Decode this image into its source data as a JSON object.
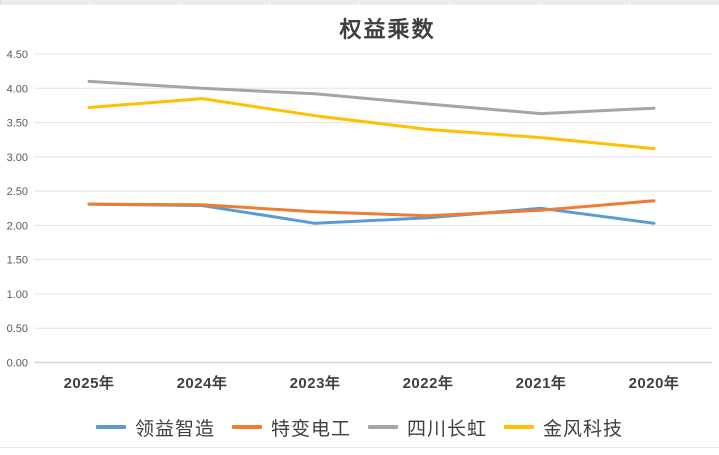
{
  "chart_data": {
    "type": "line",
    "title": "权益乘数",
    "categories": [
      "2025年",
      "2024年",
      "2023年",
      "2022年",
      "2021年",
      "2020年"
    ],
    "series": [
      {
        "name": "领益智造",
        "color": "#5B9BD5",
        "values": [
          2.31,
          2.29,
          2.03,
          2.11,
          2.25,
          2.03
        ]
      },
      {
        "name": "特变电工",
        "color": "#ED7D31",
        "values": [
          2.31,
          2.3,
          2.2,
          2.14,
          2.22,
          2.36
        ]
      },
      {
        "name": "四川长虹",
        "color": "#A5A5A5",
        "values": [
          4.1,
          4.0,
          3.92,
          3.77,
          3.63,
          3.71
        ]
      },
      {
        "name": "金风科技",
        "color": "#FFC000",
        "values": [
          3.72,
          3.85,
          3.6,
          3.4,
          3.28,
          3.12
        ]
      }
    ],
    "y_axis": {
      "min": 0,
      "max": 4.5,
      "step": 0.5,
      "tick_labels": [
        "0.00",
        "0.50",
        "1.00",
        "1.50",
        "2.00",
        "2.50",
        "3.00",
        "3.50",
        "4.00",
        "4.50"
      ]
    },
    "x_axis_label": "",
    "y_axis_label": "",
    "grid": true,
    "legend_position": "bottom"
  },
  "theme": {
    "background": "#FFFFFF",
    "grid_color": "#E4E4E4",
    "baseline_color": "#D5D5D5",
    "tick_label_color": "#595959",
    "category_label_color": "#404040",
    "title_color": "#3F3F3F",
    "top_strip_color": "#ECECEC"
  }
}
